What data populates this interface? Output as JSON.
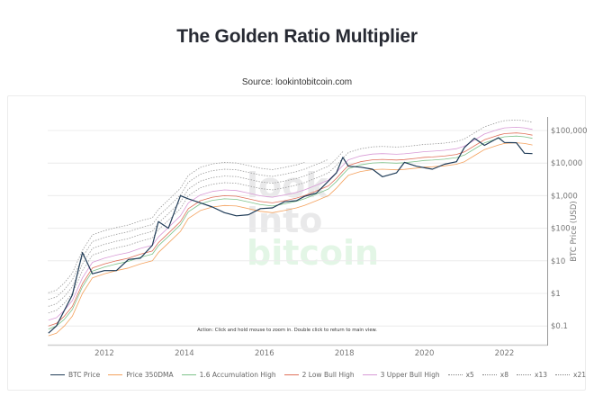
{
  "header": {
    "title": "The Golden Ratio Multiplier",
    "source": "Source: lookintobitcoin.com"
  },
  "chart": {
    "hint": "Action: Click and hold mouse to zoom in.  Double click to return to main view.",
    "y_axis_label": "BTC Price (USD)",
    "y_ticks": [
      "$100,000",
      "$10,000",
      "$1,000",
      "$100",
      "$10",
      "$1",
      "$0.1"
    ],
    "x_ticks": [
      "2012",
      "2014",
      "2016",
      "2018",
      "2020",
      "2022"
    ],
    "watermark": [
      "look",
      "into",
      "bitcoin"
    ]
  },
  "legend": [
    {
      "label": "BTC Price",
      "color": "#1f3b57",
      "style": "solid"
    },
    {
      "label": "Price 350DMA",
      "color": "#f4a15d",
      "style": "solid"
    },
    {
      "label": "1.6 Accumulation High",
      "color": "#7ec28a",
      "style": "solid"
    },
    {
      "label": "2 Low Bull High",
      "color": "#e0705a",
      "style": "solid"
    },
    {
      "label": "3 Upper Bull High",
      "color": "#d89ad6",
      "style": "solid"
    },
    {
      "label": "x5",
      "color": "#888888",
      "style": "dotted"
    },
    {
      "label": "x8",
      "color": "#888888",
      "style": "dotted"
    },
    {
      "label": "x13",
      "color": "#888888",
      "style": "dotted"
    },
    {
      "label": "x21",
      "color": "#888888",
      "style": "dotted"
    }
  ],
  "chart_data": {
    "type": "line",
    "title": "The Golden Ratio Multiplier",
    "subtitle": "Source: lookintobitcoin.com",
    "xlabel": "",
    "ylabel": "BTC Price (USD)",
    "y_scale": "log",
    "ylim": [
      0.05,
      200000
    ],
    "xlim": [
      2010.6,
      2022.8
    ],
    "grid": true,
    "legend_position": "bottom",
    "x": [
      2010.6,
      2010.8,
      2011.0,
      2011.2,
      2011.45,
      2011.7,
      2012.0,
      2012.3,
      2012.6,
      2012.9,
      2013.2,
      2013.35,
      2013.6,
      2013.9,
      2014.1,
      2014.4,
      2014.7,
      2015.0,
      2015.3,
      2015.6,
      2015.9,
      2016.2,
      2016.5,
      2016.8,
      2017.0,
      2017.3,
      2017.6,
      2017.8,
      2017.96,
      2018.1,
      2018.4,
      2018.7,
      2018.95,
      2019.3,
      2019.5,
      2019.8,
      2020.0,
      2020.2,
      2020.5,
      2020.8,
      2021.0,
      2021.25,
      2021.5,
      2021.85,
      2022.0,
      2022.3,
      2022.5,
      2022.7
    ],
    "series": [
      {
        "name": "BTC Price",
        "values": [
          0.06,
          0.1,
          0.3,
          0.9,
          18,
          4,
          5,
          5,
          11,
          12,
          30,
          160,
          100,
          1000,
          800,
          600,
          450,
          300,
          240,
          260,
          400,
          420,
          650,
          700,
          950,
          1200,
          2800,
          5000,
          15000,
          8000,
          7500,
          6500,
          3800,
          5000,
          10500,
          8000,
          7200,
          6500,
          9200,
          11000,
          30000,
          58000,
          35000,
          60000,
          43000,
          42000,
          20000,
          19500
        ]
      },
      {
        "name": "Price 350DMA",
        "values": [
          0.05,
          0.06,
          0.1,
          0.2,
          1,
          3,
          4,
          5,
          6,
          8,
          10,
          18,
          35,
          80,
          200,
          350,
          450,
          500,
          480,
          400,
          330,
          300,
          350,
          420,
          500,
          700,
          1000,
          1700,
          2800,
          4200,
          5500,
          6300,
          6500,
          6200,
          6400,
          7000,
          7500,
          7700,
          8200,
          9200,
          11000,
          17000,
          26000,
          36000,
          40000,
          42000,
          40000,
          36000
        ]
      },
      {
        "name": "1.6 Accumulation High",
        "values": [
          0.08,
          0.1,
          0.16,
          0.32,
          1.6,
          4.8,
          6.4,
          8,
          9.6,
          12.8,
          16,
          29,
          56,
          128,
          320,
          560,
          720,
          800,
          768,
          640,
          528,
          480,
          560,
          672,
          800,
          1120,
          1600,
          2720,
          4480,
          6720,
          8800,
          10080,
          10400,
          9920,
          10240,
          11200,
          12000,
          12320,
          13120,
          14720,
          17600,
          27200,
          41600,
          57600,
          64000,
          67200,
          64000,
          57600
        ]
      },
      {
        "name": "2 Low Bull High",
        "values": [
          0.1,
          0.12,
          0.2,
          0.4,
          2,
          6,
          8,
          10,
          12,
          16,
          20,
          36,
          70,
          160,
          400,
          700,
          900,
          1000,
          960,
          800,
          660,
          600,
          700,
          840,
          1000,
          1400,
          2000,
          3400,
          5600,
          8400,
          11000,
          12600,
          13000,
          12400,
          12800,
          14000,
          15000,
          15400,
          16400,
          18400,
          22000,
          34000,
          52000,
          72000,
          80000,
          84000,
          80000,
          72000
        ]
      },
      {
        "name": "3 Upper Bull High",
        "values": [
          0.15,
          0.18,
          0.3,
          0.6,
          3,
          9,
          12,
          15,
          18,
          24,
          30,
          54,
          105,
          240,
          600,
          1050,
          1350,
          1500,
          1440,
          1200,
          990,
          900,
          1050,
          1260,
          1500,
          2100,
          3000,
          5100,
          8400,
          12600,
          16500,
          18900,
          19500,
          18600,
          19200,
          21000,
          22500,
          23100,
          24600,
          27600,
          33000,
          51000,
          78000,
          108000,
          120000,
          126000,
          120000,
          108000
        ]
      },
      {
        "name": "x5",
        "values": [
          0.25,
          0.3,
          0.5,
          1,
          5,
          15,
          20,
          25,
          30,
          40,
          50,
          90,
          175,
          400,
          1000,
          1750,
          2250,
          2500,
          2400,
          2000,
          1650,
          1500,
          1750,
          2100,
          2500,
          3500,
          5000,
          8500,
          14000,
          21000,
          27500,
          31500,
          32500,
          31000,
          32000,
          35000,
          37500,
          38500,
          41000,
          46000,
          55000,
          85000,
          130000,
          180000,
          200000,
          210000,
          200000,
          180000
        ]
      },
      {
        "name": "x8",
        "values": [
          0.4,
          0.48,
          0.8,
          1.6,
          8,
          24,
          32,
          40,
          48,
          64,
          80,
          144,
          280,
          640,
          1600,
          2800,
          3600,
          4000,
          3840,
          3200,
          2640,
          2400,
          2800,
          3360,
          4000,
          5600,
          8000,
          13600,
          22400,
          null,
          null,
          null,
          null,
          null,
          null,
          null,
          null,
          null,
          null,
          null,
          null,
          null,
          null,
          null,
          null,
          null,
          null,
          null
        ]
      },
      {
        "name": "x13",
        "values": [
          0.65,
          0.78,
          1.3,
          2.6,
          13,
          39,
          52,
          65,
          78,
          104,
          130,
          234,
          455,
          1040,
          2600,
          4550,
          5850,
          6500,
          6240,
          5200,
          4290,
          3900,
          4550,
          5460,
          6500,
          9100,
          13000,
          null,
          null,
          null,
          null,
          null,
          null,
          null,
          null,
          null,
          null,
          null,
          null,
          null,
          null,
          null,
          null,
          null,
          null,
          null,
          null,
          null
        ]
      },
      {
        "name": "x21",
        "values": [
          1.05,
          1.26,
          2.1,
          4.2,
          21,
          63,
          84,
          105,
          126,
          168,
          210,
          378,
          735,
          1680,
          4200,
          7350,
          9450,
          10500,
          10080,
          8400,
          6930,
          6300,
          7350,
          8820,
          10500,
          null,
          null,
          null,
          null,
          null,
          null,
          null,
          null,
          null,
          null,
          null,
          null,
          null,
          null,
          null,
          null,
          null,
          null,
          null,
          null,
          null,
          null,
          null
        ]
      }
    ]
  }
}
